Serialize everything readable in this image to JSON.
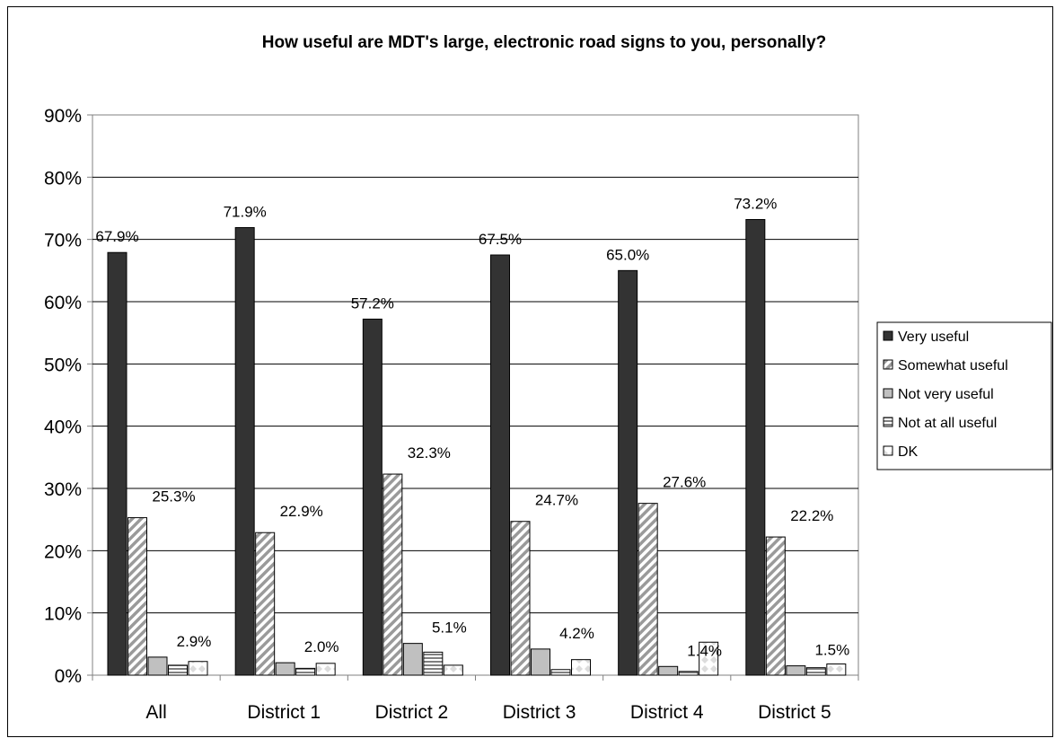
{
  "chart_data": {
    "type": "bar",
    "title": "How useful are MDT's large, electronic road signs to you, personally?",
    "xlabel": "",
    "ylabel": "",
    "ylim": [
      0,
      90
    ],
    "yticks": [
      "0%",
      "10%",
      "20%",
      "30%",
      "40%",
      "50%",
      "60%",
      "70%",
      "80%",
      "90%"
    ],
    "categories": [
      "All",
      "District 1",
      "District 2",
      "District 3",
      "District 4",
      "District 5"
    ],
    "series": [
      {
        "name": "Very useful",
        "values": [
          67.9,
          71.9,
          57.2,
          67.5,
          65.0,
          73.2
        ],
        "labels": [
          "67.9%",
          "71.9%",
          "57.2%",
          "67.5%",
          "65.0%",
          "73.2%"
        ]
      },
      {
        "name": "Somewhat useful",
        "values": [
          25.3,
          22.9,
          32.3,
          24.7,
          27.6,
          22.2
        ],
        "labels": [
          "25.3%",
          "22.9%",
          "32.3%",
          "24.7%",
          "27.6%",
          "22.2%"
        ]
      },
      {
        "name": "Not very useful",
        "values": [
          2.9,
          2.0,
          5.1,
          4.2,
          1.4,
          1.5
        ],
        "labels": [
          "2.9%",
          "2.0%",
          "5.1%",
          "4.2%",
          "1.4%",
          "1.5%"
        ]
      },
      {
        "name": "Not at all useful",
        "values": [
          1.6,
          1.1,
          3.7,
          0.9,
          0.6,
          1.2
        ],
        "labels": []
      },
      {
        "name": "DK",
        "values": [
          2.2,
          1.9,
          1.6,
          2.5,
          5.3,
          1.8
        ],
        "labels": []
      }
    ],
    "grid": true,
    "legend": "right",
    "colors": {
      "very_useful": "#333333",
      "somewhat_useful": "#c0c0c0",
      "not_very_useful": "#c0c0c0",
      "not_at_all_useful": "#c0c0c0",
      "dk": "#ffffff"
    }
  }
}
